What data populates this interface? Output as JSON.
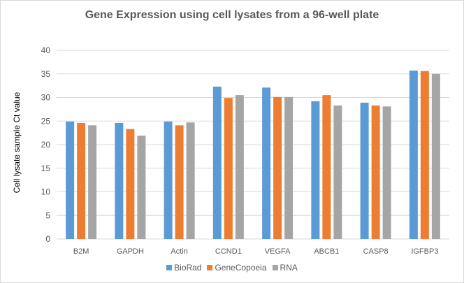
{
  "chart_data": {
    "type": "bar",
    "title": "Gene Expression using cell lysates from a 96-well plate",
    "xlabel": "",
    "ylabel": "Cell lysate sample Ct value",
    "ylim": [
      0,
      40
    ],
    "yticks": [
      0,
      5,
      10,
      15,
      20,
      25,
      30,
      35,
      40
    ],
    "grid": true,
    "legend_position": "bottom",
    "categories": [
      "B2M",
      "GAPDH",
      "Actin",
      "CCND1",
      "VEGFA",
      "ABCB1",
      "CASP8",
      "IGFBP3"
    ],
    "series": [
      {
        "name": "BioRad",
        "color": "#5b9bd5",
        "values": [
          24.9,
          24.6,
          24.9,
          32.3,
          32.1,
          29.2,
          28.9,
          35.7
        ]
      },
      {
        "name": "GeneCopoeia",
        "color": "#ed7d31",
        "values": [
          24.6,
          23.3,
          24.1,
          29.9,
          30.1,
          30.5,
          28.3,
          35.6
        ]
      },
      {
        "name": "RNA",
        "color": "#a5a5a5",
        "values": [
          24.1,
          21.9,
          24.7,
          30.5,
          30.1,
          28.3,
          28.1,
          35.0
        ]
      }
    ]
  }
}
